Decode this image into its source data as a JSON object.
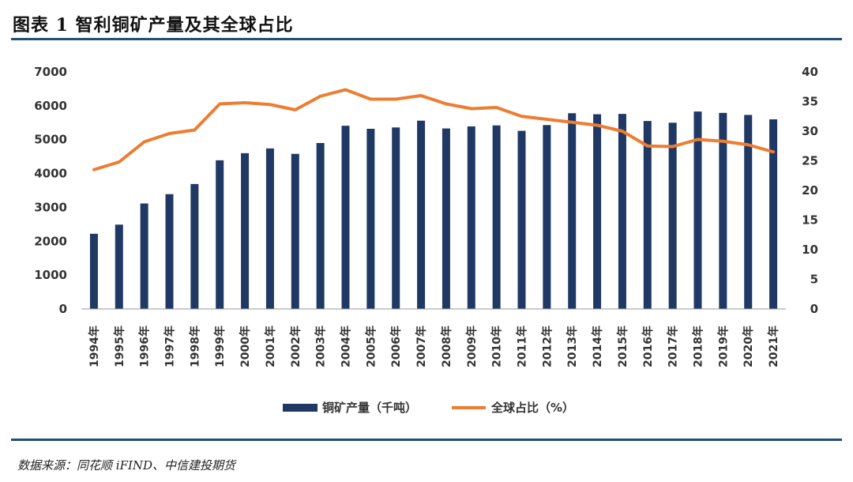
{
  "header": {
    "title": "图表 1  智利铜矿产量及其全球占比"
  },
  "footer": {
    "source": "数据来源：同花顺 iFIND、中信建投期货"
  },
  "colors": {
    "bar": "#1f3864",
    "line": "#ed7d31",
    "rule": "#1f4e79"
  },
  "chart_data": {
    "type": "bar",
    "title": "",
    "categories": [
      "1994年",
      "1995年",
      "1996年",
      "1997年",
      "1998年",
      "1999年",
      "2000年",
      "2001年",
      "2002年",
      "2003年",
      "2004年",
      "2005年",
      "2006年",
      "2007年",
      "2008年",
      "2009年",
      "2010年",
      "2011年",
      "2012年",
      "2013年",
      "2014年",
      "2015年",
      "2016年",
      "2017年",
      "2018年",
      "2019年",
      "2020年",
      "2021年"
    ],
    "series": [
      {
        "name": "铜矿产量（千吨）",
        "type": "bar",
        "axis": "left",
        "values": [
          2220,
          2490,
          3115,
          3390,
          3690,
          4390,
          4600,
          4740,
          4580,
          4900,
          5410,
          5320,
          5360,
          5560,
          5330,
          5390,
          5420,
          5260,
          5430,
          5780,
          5750,
          5760,
          5550,
          5500,
          5830,
          5790,
          5730,
          5600
        ]
      },
      {
        "name": "全球占比（%）",
        "type": "line",
        "axis": "right",
        "values": [
          23.5,
          24.8,
          28.2,
          29.6,
          30.2,
          34.6,
          34.8,
          34.5,
          33.6,
          35.9,
          37.0,
          35.4,
          35.4,
          36.0,
          34.6,
          33.8,
          34.0,
          32.5,
          32.0,
          31.5,
          31.0,
          30.0,
          27.5,
          27.4,
          28.6,
          28.3,
          27.7,
          26.5
        ]
      }
    ],
    "y_left": {
      "ylim": [
        0,
        7000
      ],
      "ticks": [
        "0",
        "1000",
        "2000",
        "3000",
        "4000",
        "5000",
        "6000",
        "7000"
      ]
    },
    "y_right": {
      "ylim": [
        0,
        40
      ],
      "ticks": [
        "0",
        "5",
        "10",
        "15",
        "20",
        "25",
        "30",
        "35",
        "40"
      ]
    },
    "grid": false,
    "legend_position": "bottom"
  }
}
